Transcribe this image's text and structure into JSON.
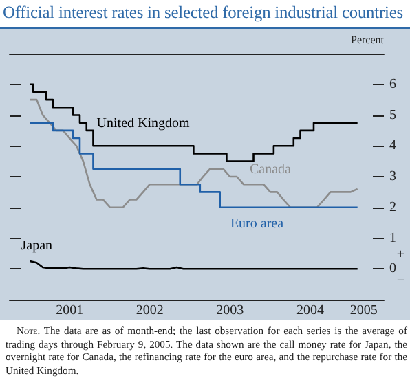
{
  "chart_data": {
    "type": "line",
    "title": "Official interest rates in selected foreign industrial countries",
    "ylabel": "Percent",
    "annotations": [
      "+",
      "−",
      "Note. The data are as of month-end; the last observation for each series is the average of trading days through February 9, 2005. The data shown are the call money rate for Japan, the overnight rate for Canada, the refinancing rate for the euro area, and the repurchase rate for the United Kingdom."
    ],
    "x": [
      "2001-01",
      "2001-02",
      "2001-03",
      "2001-04",
      "2001-05",
      "2001-06",
      "2001-07",
      "2001-08",
      "2001-09",
      "2001-10",
      "2001-11",
      "2001-12",
      "2002-01",
      "2002-02",
      "2002-03",
      "2002-04",
      "2002-05",
      "2002-06",
      "2002-07",
      "2002-08",
      "2002-09",
      "2002-10",
      "2002-11",
      "2002-12",
      "2003-01",
      "2003-02",
      "2003-03",
      "2003-04",
      "2003-05",
      "2003-06",
      "2003-07",
      "2003-08",
      "2003-09",
      "2003-10",
      "2003-11",
      "2003-12",
      "2004-01",
      "2004-02",
      "2004-03",
      "2004-04",
      "2004-05",
      "2004-06",
      "2004-07",
      "2004-08",
      "2004-09",
      "2004-10",
      "2004-11",
      "2004-12",
      "2005-01",
      "2005-02"
    ],
    "series": [
      {
        "name": "United Kingdom",
        "type": "step",
        "color": "#000000",
        "values": [
          6.0,
          5.75,
          5.75,
          5.5,
          5.25,
          5.25,
          5.25,
          5.0,
          4.75,
          4.5,
          4.0,
          4.0,
          4.0,
          4.0,
          4.0,
          4.0,
          4.0,
          4.0,
          4.0,
          4.0,
          4.0,
          4.0,
          4.0,
          4.0,
          4.0,
          3.75,
          3.75,
          3.75,
          3.75,
          3.75,
          3.5,
          3.5,
          3.5,
          3.5,
          3.75,
          3.75,
          3.75,
          4.0,
          4.0,
          4.0,
          4.25,
          4.5,
          4.5,
          4.75,
          4.75,
          4.75,
          4.75,
          4.75,
          4.75,
          4.75
        ]
      },
      {
        "name": "Canada",
        "type": "line",
        "color": "#8c8c8c",
        "values": [
          5.5,
          5.5,
          5.0,
          4.75,
          4.5,
          4.5,
          4.25,
          4.0,
          3.5,
          2.75,
          2.25,
          2.25,
          2.0,
          2.0,
          2.0,
          2.25,
          2.25,
          2.5,
          2.75,
          2.75,
          2.75,
          2.75,
          2.75,
          2.75,
          2.75,
          2.75,
          3.0,
          3.25,
          3.25,
          3.25,
          3.0,
          3.0,
          2.75,
          2.75,
          2.75,
          2.75,
          2.5,
          2.5,
          2.25,
          2.0,
          2.0,
          2.0,
          2.0,
          2.0,
          2.25,
          2.5,
          2.5,
          2.5,
          2.5,
          2.6
        ]
      },
      {
        "name": "Euro area",
        "type": "step",
        "color": "#2060a8",
        "values": [
          4.75,
          4.75,
          4.75,
          4.75,
          4.5,
          4.5,
          4.5,
          4.25,
          3.75,
          3.75,
          3.25,
          3.25,
          3.25,
          3.25,
          3.25,
          3.25,
          3.25,
          3.25,
          3.25,
          3.25,
          3.25,
          3.25,
          3.25,
          2.75,
          2.75,
          2.75,
          2.5,
          2.5,
          2.5,
          2.0,
          2.0,
          2.0,
          2.0,
          2.0,
          2.0,
          2.0,
          2.0,
          2.0,
          2.0,
          2.0,
          2.0,
          2.0,
          2.0,
          2.0,
          2.0,
          2.0,
          2.0,
          2.0,
          2.0,
          2.0
        ]
      },
      {
        "name": "Japan",
        "type": "line",
        "color": "#000000",
        "values": [
          0.25,
          0.2,
          0.05,
          0.02,
          0.02,
          0.02,
          0.05,
          0.02,
          0.0,
          0.0,
          0.0,
          0.0,
          0.0,
          0.0,
          0.0,
          0.0,
          0.0,
          0.02,
          0.0,
          0.0,
          0.0,
          0.0,
          0.05,
          0.0,
          0.0,
          0.0,
          0.0,
          0.0,
          0.0,
          0.0,
          0.0,
          0.0,
          0.0,
          0.0,
          0.0,
          0.0,
          0.0,
          0.0,
          0.0,
          0.0,
          0.0,
          0.0,
          0.0,
          0.0,
          0.0,
          0.0,
          0.0,
          0.0,
          0.0,
          0.0
        ]
      }
    ],
    "xlim": [
      "2000-10-01",
      "2005-06-01"
    ],
    "xticks": [
      {
        "value": "2001-07-01",
        "label": "2001"
      },
      {
        "value": "2002-07-01",
        "label": "2002"
      },
      {
        "value": "2003-07-01",
        "label": "2003"
      },
      {
        "value": "2004-07-01",
        "label": "2004"
      },
      {
        "value": "2005-03-01",
        "label": "2005"
      }
    ],
    "ylim": [
      -1,
      7
    ],
    "yticks": [
      0,
      1,
      2,
      3,
      4,
      5,
      6
    ],
    "grid": false,
    "legend": false,
    "marker": "none",
    "line_style": "solid"
  }
}
